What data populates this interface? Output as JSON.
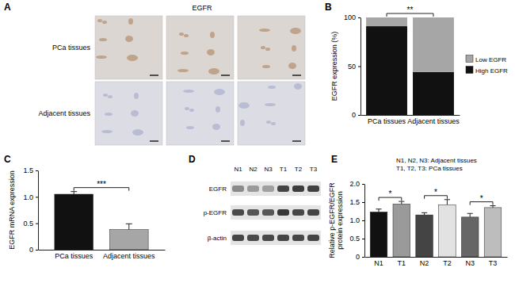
{
  "panel_labels": [
    "A",
    "B",
    "C",
    "D",
    "E"
  ],
  "histology": {
    "title": "EGFR",
    "rows": [
      "PCa tissues",
      "Adjacent tissues"
    ]
  },
  "western_blot": {
    "lanes": [
      "N1",
      "N2",
      "N3",
      "T1",
      "T2",
      "T3"
    ],
    "proteins": [
      "EGFR",
      "p-EGFR",
      "β-actin"
    ]
  },
  "chart_data": [
    {
      "type": "bar",
      "stacked": true,
      "categories": [
        "PCa tissues",
        "Adjacent tissues"
      ],
      "series": [
        {
          "name": "High EGFR",
          "color": "#111111",
          "values": [
            91,
            44
          ]
        },
        {
          "name": "Low EGFR",
          "color": "#a6a6a6",
          "values": [
            9,
            56
          ]
        }
      ],
      "ylim": [
        0,
        100
      ],
      "yticks": [
        0,
        50,
        100
      ],
      "y_label": "EGFR expression (%)",
      "legend": "right",
      "annotations": [
        {
          "text": "**",
          "between": [
            "PCa tissues",
            "Adjacent tissues"
          ]
        }
      ]
    },
    {
      "type": "bar",
      "categories": [
        "PCa tissues",
        "Adjacent tissues"
      ],
      "values": [
        1.05,
        0.38
      ],
      "errors": [
        0.05,
        0.11
      ],
      "colors": [
        "#111111",
        "#a6a6a6"
      ],
      "ylim": [
        0,
        1.5
      ],
      "yticks": [
        0,
        0.5,
        {
          "value": 1,
          "label": "1.0"
        },
        1.5
      ],
      "y_label": "EGFR mRNA expression",
      "annotations": [
        {
          "text": "***",
          "between": [
            "PCa tissues",
            "Adjacent tissues"
          ]
        }
      ]
    },
    {
      "type": "bar",
      "categories": [
        "N1",
        "T1",
        "N2",
        "T2",
        "N3",
        "T3"
      ],
      "values": [
        1.23,
        1.45,
        1.15,
        1.43,
        1.09,
        1.35
      ],
      "errors": [
        0.08,
        0.07,
        0.06,
        0.14,
        0.1,
        0.05
      ],
      "colors": [
        "#111111",
        "#9a9a9a",
        "#444444",
        "#e2e2e2",
        "#666666",
        "#bdbdbd"
      ],
      "ylim": [
        0,
        2
      ],
      "yticks": [
        0,
        0.5,
        {
          "value": 1,
          "label": "1.0"
        },
        1.5,
        {
          "value": 2,
          "label": "2.0"
        }
      ],
      "y_label": "Relative p-EGFR/EGFR protein expression",
      "notes": [
        "N1, N2, N3: Adjacent tissues",
        "T1, T2, T3: PCa tissues"
      ],
      "annotations": [
        {
          "text": "*",
          "between": [
            "N1",
            "T1"
          ]
        },
        {
          "text": "*",
          "between": [
            "N2",
            "T2"
          ]
        },
        {
          "text": "*",
          "between": [
            "N3",
            "T3"
          ]
        }
      ]
    }
  ]
}
